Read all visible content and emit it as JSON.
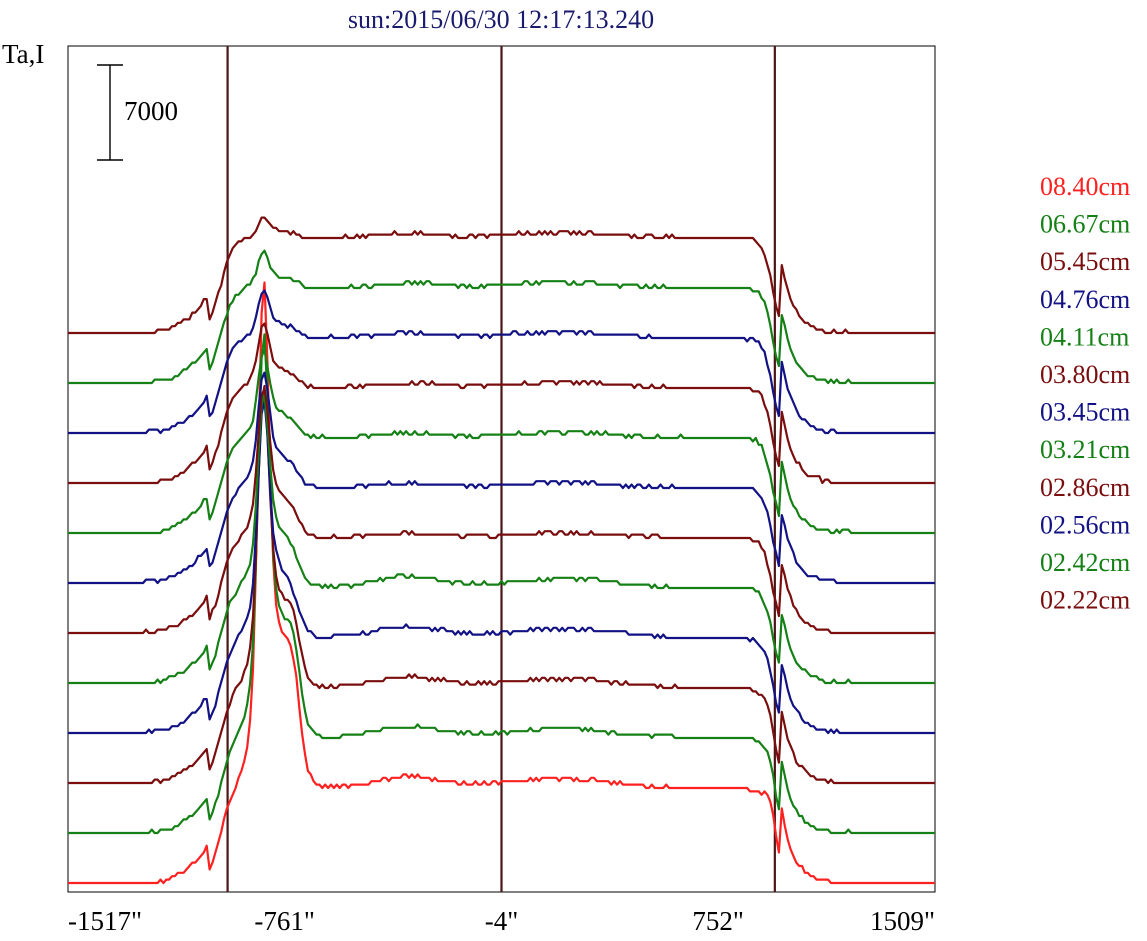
{
  "chart_data": {
    "type": "line",
    "title": "sun:2015/06/30 12:17:13.240",
    "ylabel": "Ta,I",
    "xlim": [
      -1517,
      1509
    ],
    "x_ticks": [
      -1517,
      -761,
      -4,
      752,
      1509
    ],
    "x_tick_labels": [
      "-1517\"",
      "-761\"",
      "-4\"",
      "752\"",
      "1509\""
    ],
    "scale_bar": {
      "label": "7000",
      "value": 7000
    },
    "vertical_lines_x": [
      -960,
      -4,
      950
    ],
    "colors": {
      "red": "#ff2020",
      "green": "#158015",
      "darkred": "#7a0e0e",
      "navy": "#121285",
      "vline": "#4a1515"
    },
    "series": [
      {
        "name": "08.40cm",
        "color": "#ff2020",
        "baseline": 0,
        "peak": 35000,
        "spike": 2000
      },
      {
        "name": "06.67cm",
        "color": "#158015",
        "baseline": 1000,
        "peak": 28000,
        "spike": 1200
      },
      {
        "name": "05.45cm",
        "color": "#7a0e0e",
        "baseline": 2000,
        "peak": 21000,
        "spike": 900
      },
      {
        "name": "04.76cm",
        "color": "#121285",
        "baseline": 3000,
        "peak": 16500,
        "spike": 500
      },
      {
        "name": "04.11cm",
        "color": "#158015",
        "baseline": 4000,
        "peak": 13500,
        "spike": 300
      },
      {
        "name": "03.80cm",
        "color": "#7a0e0e",
        "baseline": 5000,
        "peak": 10500,
        "spike": 0
      },
      {
        "name": "03.45cm",
        "color": "#121285",
        "baseline": 6000,
        "peak": 8000,
        "spike": 0
      },
      {
        "name": "03.21cm",
        "color": "#158015",
        "baseline": 7000,
        "peak": 6000,
        "spike": 0
      },
      {
        "name": "02.86cm",
        "color": "#7a0e0e",
        "baseline": 8000,
        "peak": 4500,
        "spike": 0
      },
      {
        "name": "02.56cm",
        "color": "#121285",
        "baseline": 9000,
        "peak": 3300,
        "spike": 0
      },
      {
        "name": "02.42cm",
        "color": "#158015",
        "baseline": 10000,
        "peak": 2500,
        "spike": 0
      },
      {
        "name": "02.22cm",
        "color": "#7a0e0e",
        "baseline": 11000,
        "peak": 1500,
        "spike": 0
      }
    ],
    "disk_level": 7000,
    "grid": false
  }
}
